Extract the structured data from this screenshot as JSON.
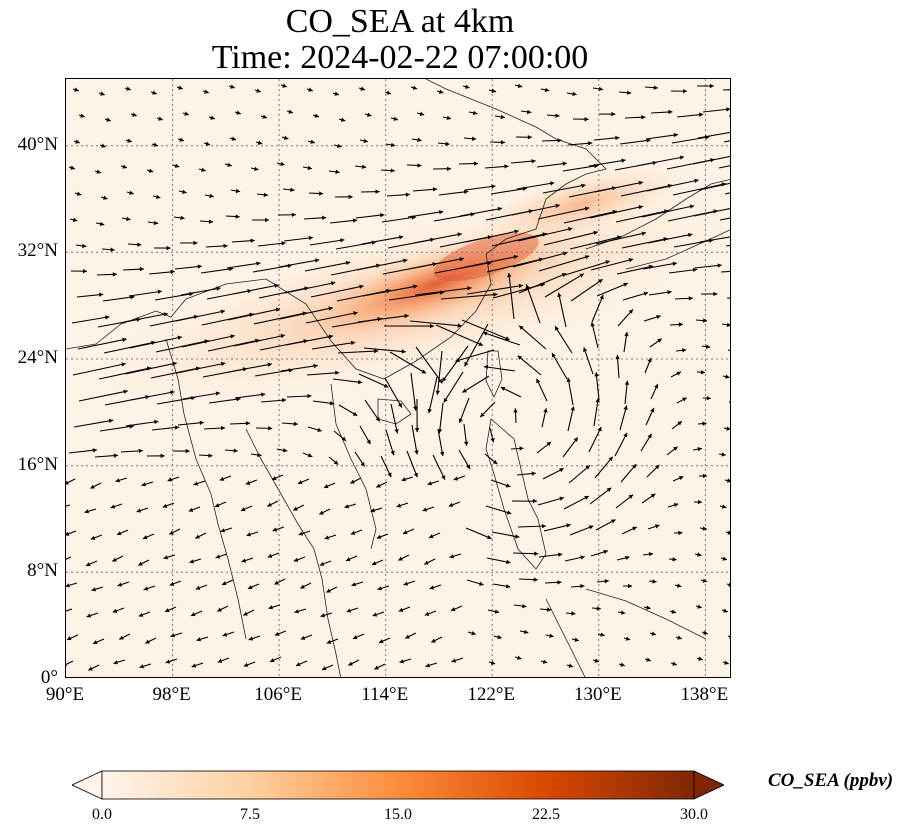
{
  "title": {
    "line1": "CO_SEA at 4km",
    "line2": "Time: 2024-02-22 07:00:00"
  },
  "map": {
    "lon_range": [
      90,
      140
    ],
    "lat_range": [
      0,
      45
    ],
    "lat_ticks": [
      {
        "value": 0,
        "label": "0°"
      },
      {
        "value": 8,
        "label": "8°N"
      },
      {
        "value": 16,
        "label": "16°N"
      },
      {
        "value": 24,
        "label": "24°N"
      },
      {
        "value": 32,
        "label": "32°N"
      },
      {
        "value": 40,
        "label": "40°N"
      }
    ],
    "lon_ticks": [
      {
        "value": 90,
        "label": "90°E"
      },
      {
        "value": 98,
        "label": "98°E"
      },
      {
        "value": 106,
        "label": "106°E"
      },
      {
        "value": 114,
        "label": "114°E"
      },
      {
        "value": 122,
        "label": "122°E"
      },
      {
        "value": 130,
        "label": "130°E"
      },
      {
        "value": 138,
        "label": "138°E"
      }
    ],
    "gridlines": true,
    "field": "CO_SEA concentration with wind vectors"
  },
  "colorbar": {
    "label": "CO_SEA (ppbv)",
    "min": 0,
    "max": 30,
    "extend": "both",
    "colors": [
      "#fff5eb",
      "#fdd0a2",
      "#fd8d3c",
      "#d94801",
      "#7f2704"
    ],
    "ticks": [
      {
        "value": 0,
        "label": "0.0"
      },
      {
        "value": 7.5,
        "label": "7.5"
      },
      {
        "value": 15,
        "label": "15.0"
      },
      {
        "value": 22.5,
        "label": "22.5"
      },
      {
        "value": 30,
        "label": "30.0"
      }
    ]
  }
}
